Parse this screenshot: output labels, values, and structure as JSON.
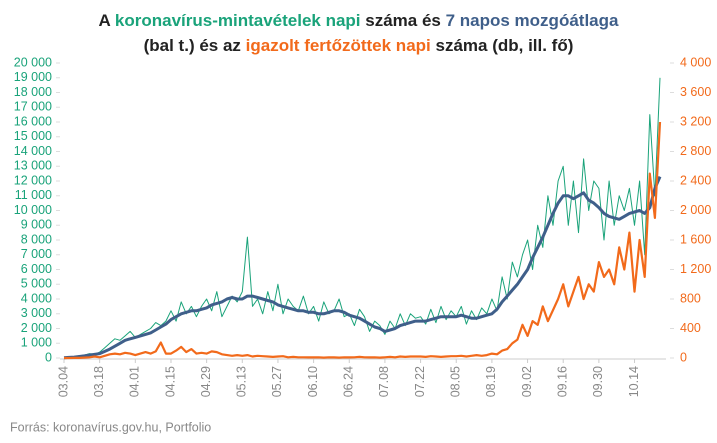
{
  "chart_data": {
    "type": "line",
    "title_lines": [
      [
        {
          "text": "A ",
          "color": "#222222"
        },
        {
          "text": "koronavírus-mintavételek napi",
          "color": "#1aa37a"
        },
        {
          "text": " száma és ",
          "color": "#222222"
        },
        {
          "text": "7 napos mozgóátlaga",
          "color": "#3f5f8a"
        }
      ],
      [
        {
          "text": "(bal t.) és az ",
          "color": "#222222"
        },
        {
          "text": "igazolt fertőzöttek napi",
          "color": "#f26a1b"
        },
        {
          "text": " száma (db, ill. fő)",
          "color": "#222222"
        }
      ]
    ],
    "source": "Forrás: koronavírus.gov.hu, Portfolio",
    "categories": [
      "03.04",
      null,
      null,
      null,
      null,
      null,
      null,
      "03.18",
      null,
      null,
      null,
      null,
      null,
      null,
      "04.01",
      null,
      null,
      null,
      null,
      null,
      null,
      "04.15",
      null,
      null,
      null,
      null,
      null,
      null,
      "04.29",
      null,
      null,
      null,
      null,
      null,
      null,
      "05.13",
      null,
      null,
      null,
      null,
      null,
      null,
      "05.27",
      null,
      null,
      null,
      null,
      null,
      null,
      "06.10",
      null,
      null,
      null,
      null,
      null,
      null,
      "06.24",
      null,
      null,
      null,
      null,
      null,
      null,
      "07.08",
      null,
      null,
      null,
      null,
      null,
      null,
      "07.22",
      null,
      null,
      null,
      null,
      null,
      null,
      "08.05",
      null,
      null,
      null,
      null,
      null,
      null,
      "08.19",
      null,
      null,
      null,
      null,
      null,
      null,
      "09.02",
      null,
      null,
      null,
      null,
      null,
      null,
      "09.16",
      null,
      null,
      null,
      null,
      null,
      null,
      "09.30",
      null,
      null,
      null,
      null,
      null,
      null,
      "10.14",
      null,
      null,
      null,
      null,
      null
    ],
    "series": [
      {
        "color": "#1aa37a",
        "width": 1,
        "axis": "y",
        "values": [
          20,
          50,
          80,
          150,
          200,
          300,
          250,
          400,
          700,
          1000,
          1300,
          1200,
          1500,
          1800,
          1400,
          1600,
          1800,
          2000,
          2400,
          2200,
          2500,
          3200,
          2500,
          3800,
          3000,
          3500,
          2800,
          3500,
          4000,
          3200,
          4500,
          2800,
          3500,
          4200,
          3800,
          4500,
          8200,
          3500,
          4000,
          3000,
          4500,
          3200,
          5000,
          3000,
          4000,
          3500,
          3200,
          4200,
          3000,
          3500,
          2500,
          3800,
          3000,
          3200,
          4000,
          2800,
          3000,
          2200,
          3300,
          2800,
          1800,
          2500,
          2200,
          1600,
          2500,
          2000,
          3000,
          2200,
          3000,
          2700,
          2800,
          2300,
          3300,
          2400,
          3500,
          2600,
          3200,
          2800,
          3500,
          2300,
          3200,
          2600,
          3400,
          3000,
          4000,
          3200,
          5500,
          4000,
          6500,
          5500,
          7000,
          8000,
          6000,
          9000,
          7500,
          11000,
          9000,
          12000,
          13000,
          9000,
          12000,
          8500,
          13500,
          10000,
          12000,
          11500,
          8000,
          12000,
          9000,
          11000,
          10000,
          11500,
          9000,
          12000,
          7000,
          16500,
          11000,
          19000
        ]
      },
      {
        "color": "#3f5f8a",
        "width": 3,
        "axis": "y",
        "values": [
          20,
          40,
          60,
          100,
          150,
          200,
          250,
          300,
          450,
          600,
          800,
          1000,
          1200,
          1300,
          1400,
          1500,
          1600,
          1700,
          1900,
          2100,
          2300,
          2600,
          2800,
          3000,
          3100,
          3200,
          3200,
          3300,
          3400,
          3600,
          3700,
          3800,
          4000,
          4100,
          4000,
          4000,
          4200,
          4200,
          4100,
          4000,
          3900,
          3800,
          3600,
          3500,
          3400,
          3300,
          3200,
          3200,
          3100,
          3100,
          3000,
          3000,
          3100,
          3200,
          3200,
          3100,
          2900,
          2800,
          2700,
          2500,
          2300,
          2100,
          2000,
          1800,
          1900,
          2000,
          2200,
          2300,
          2400,
          2500,
          2500,
          2500,
          2600,
          2700,
          2800,
          2800,
          2800,
          2800,
          2900,
          2800,
          2700,
          2700,
          2800,
          2900,
          3000,
          3300,
          3800,
          4200,
          4600,
          5000,
          5500,
          6000,
          6800,
          7500,
          8200,
          9000,
          9800,
          10500,
          11000,
          11000,
          10800,
          11000,
          11200,
          10700,
          10500,
          10200,
          9800,
          9600,
          9500,
          9400,
          9600,
          9800,
          9900,
          10000,
          9800,
          10200,
          11500,
          12300
        ]
      },
      {
        "color": "#f26a1b",
        "width": 2.2,
        "axis": "y2",
        "values": [
          0,
          0,
          1,
          2,
          5,
          10,
          20,
          10,
          30,
          50,
          60,
          50,
          70,
          60,
          40,
          60,
          80,
          60,
          90,
          210,
          60,
          60,
          100,
          150,
          80,
          120,
          60,
          70,
          60,
          90,
          80,
          50,
          40,
          30,
          40,
          30,
          40,
          20,
          30,
          25,
          20,
          15,
          20,
          25,
          10,
          15,
          10,
          10,
          8,
          8,
          10,
          5,
          10,
          8,
          6,
          10,
          8,
          10,
          15,
          10,
          8,
          10,
          5,
          10,
          15,
          10,
          20,
          15,
          20,
          20,
          20,
          15,
          25,
          20,
          15,
          20,
          25,
          25,
          30,
          20,
          30,
          40,
          30,
          40,
          60,
          50,
          100,
          120,
          200,
          250,
          450,
          300,
          500,
          450,
          700,
          500,
          650,
          800,
          1000,
          700,
          900,
          1100,
          800,
          1000,
          900,
          1300,
          1100,
          1200,
          1000,
          1500,
          1200,
          1700,
          900,
          1600,
          1100,
          2500,
          1900,
          3200
        ]
      }
    ],
    "ylim": [
      0,
      20000
    ],
    "yticks": [
      0,
      {
        "value": 1000,
        "label": "1 000"
      },
      {
        "value": 2000,
        "label": "2 000"
      },
      {
        "value": 3000,
        "label": "3 000"
      },
      {
        "value": 4000,
        "label": "4 000"
      },
      {
        "value": 5000,
        "label": "5 000"
      },
      {
        "value": 6000,
        "label": "6 000"
      },
      {
        "value": 7000,
        "label": "7 000"
      },
      {
        "value": 8000,
        "label": "8 000"
      },
      {
        "value": 9000,
        "label": "9 000"
      },
      {
        "value": 10000,
        "label": "10 000"
      },
      {
        "value": 11000,
        "label": "11 000"
      },
      {
        "value": 12000,
        "label": "12 000"
      },
      {
        "value": 13000,
        "label": "13 000"
      },
      {
        "value": 14000,
        "label": "14 000"
      },
      {
        "value": 15000,
        "label": "15 000"
      },
      {
        "value": 16000,
        "label": "16 000"
      },
      {
        "value": 17000,
        "label": "17 000"
      },
      {
        "value": 18000,
        "label": "18 000"
      },
      {
        "value": 19000,
        "label": "19 000"
      },
      {
        "value": 20000,
        "label": "20 000"
      }
    ],
    "y2lim": [
      0,
      4000
    ],
    "y2ticks": [
      0,
      400,
      800,
      {
        "value": 1200,
        "label": "1 200"
      },
      {
        "value": 1600,
        "label": "1 600"
      },
      {
        "value": 2000,
        "label": "2 000"
      },
      {
        "value": 2400,
        "label": "2 400"
      },
      {
        "value": 2800,
        "label": "2 800"
      },
      {
        "value": 3200,
        "label": "3 200"
      },
      {
        "value": 3600,
        "label": "3 600"
      },
      {
        "value": 4000,
        "label": "4 000"
      }
    ],
    "ytick_color": "#1aa37a",
    "y2tick_color": "#f26a1b",
    "grid": false
  }
}
